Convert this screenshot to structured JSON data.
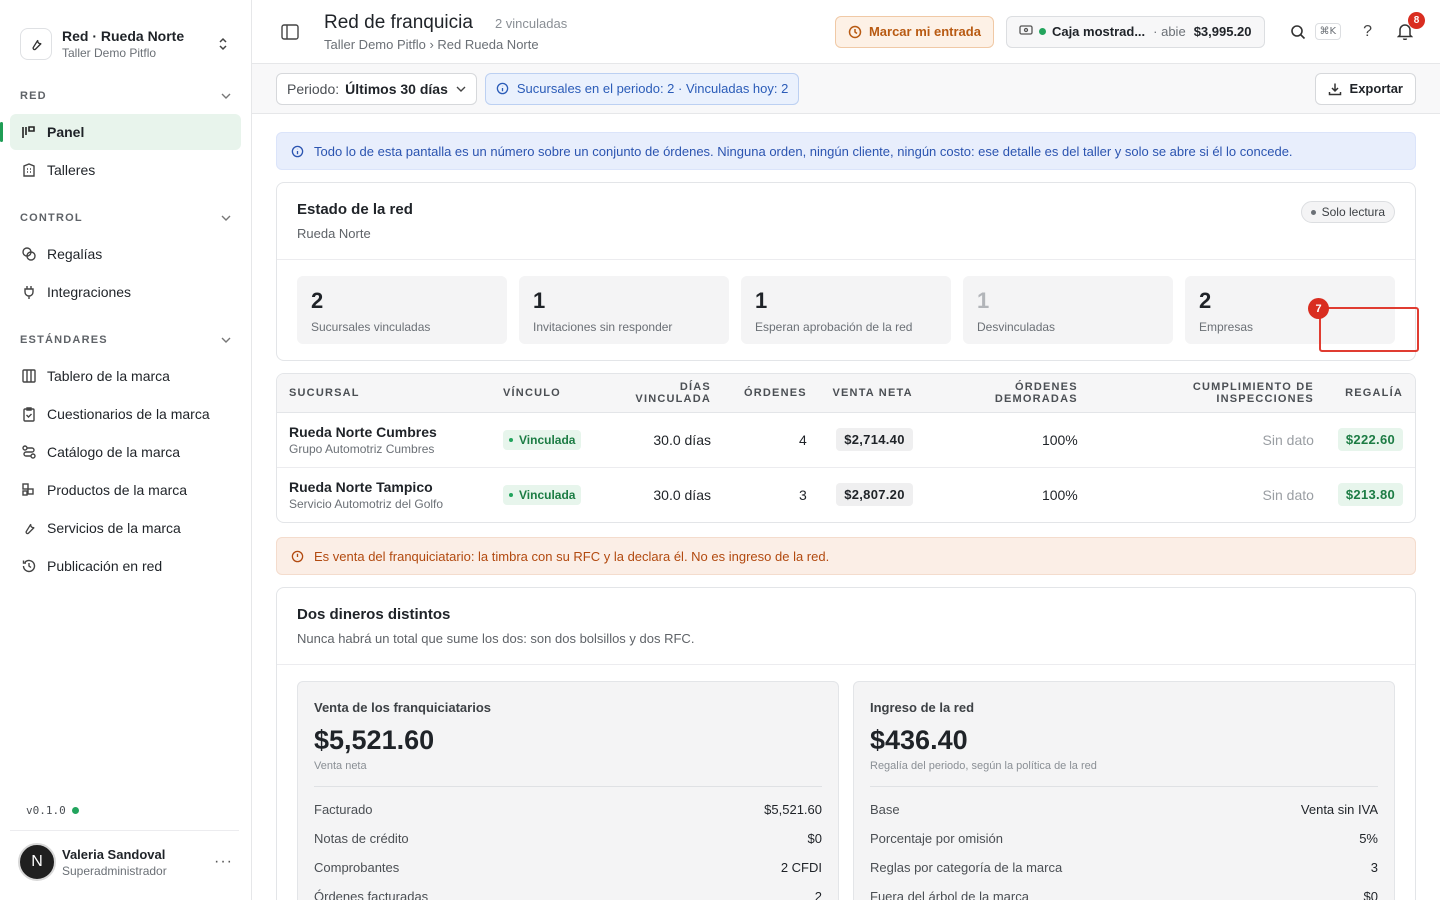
{
  "org": {
    "name": "Red · Rueda Norte",
    "subtitle": "Taller Demo Pitflo"
  },
  "sidebar": {
    "sections": [
      {
        "title": "RED",
        "items": [
          {
            "label": "Panel",
            "icon": "chart-icon",
            "active": true
          },
          {
            "label": "Talleres",
            "icon": "building-icon"
          }
        ]
      },
      {
        "title": "CONTROL",
        "items": [
          {
            "label": "Regalías",
            "icon": "coins-icon"
          },
          {
            "label": "Integraciones",
            "icon": "plug-icon"
          }
        ]
      },
      {
        "title": "ESTÁNDARES",
        "items": [
          {
            "label": "Tablero de la marca",
            "icon": "columns-icon"
          },
          {
            "label": "Cuestionarios de la marca",
            "icon": "clipboard-icon"
          },
          {
            "label": "Catálogo de la marca",
            "icon": "route-icon"
          },
          {
            "label": "Productos de la marca",
            "icon": "boxes-icon"
          },
          {
            "label": "Servicios de la marca",
            "icon": "wrench-icon"
          },
          {
            "label": "Publicación en red",
            "icon": "history-icon"
          }
        ]
      }
    ]
  },
  "version": "v0.1.0",
  "user": {
    "initial": "N",
    "name": "Valeria Sandoval",
    "role": "Superadministrador",
    "more": "···"
  },
  "header": {
    "title": "Red de franquicia",
    "count": "2 vinculadas",
    "breadcrumb": "Taller Demo Pitflo › Red Rueda Norte",
    "checkin_label": "Marcar mi entrada",
    "cashbox": {
      "name": "Caja mostrad...",
      "state": "· abie",
      "amount": "$3,995.20"
    },
    "search_shortcut": "⌘K",
    "notifications": "8"
  },
  "filters": {
    "period_label": "Periodo:",
    "period_value": "Últimos 30 días",
    "info": "Sucursales en el periodo: 2 · Vinculadas hoy: 2",
    "export_label": "Exportar"
  },
  "banner_info": "Todo lo de esta pantalla es un número sobre un conjunto de órdenes. Ninguna orden, ningún cliente, ningún costo: ese detalle es del taller y solo se abre si él lo concede.",
  "status": {
    "title": "Estado de la red",
    "subtitle": "Rueda Norte",
    "badge": "Solo lectura",
    "stats": [
      {
        "value": "2",
        "label": "Sucursales vinculadas"
      },
      {
        "value": "1",
        "label": "Invitaciones sin responder"
      },
      {
        "value": "1",
        "label": "Esperan aprobación de la red"
      },
      {
        "value": "1",
        "label": "Desvinculadas",
        "muted": true
      },
      {
        "value": "2",
        "label": "Empresas"
      }
    ]
  },
  "table": {
    "headers": [
      "SUCURSAL",
      "VÍNCULO",
      "DÍAS VINCULADA",
      "ÓRDENES",
      "VENTA NETA",
      "ÓRDENES DEMORADAS",
      "CUMPLIMIENTO DE INSPECCIONES",
      "REGALÍA"
    ],
    "rows": [
      {
        "name": "Rueda Norte Cumbres",
        "company": "Grupo Automotriz Cumbres",
        "link": "Vinculada",
        "days": "30.0 días",
        "orders": "4",
        "net": "$2,714.40",
        "delayed": "100%",
        "inspections": "Sin dato",
        "royalty": "$222.60"
      },
      {
        "name": "Rueda Norte Tampico",
        "company": "Servicio Automotriz del Golfo",
        "link": "Vinculada",
        "days": "30.0 días",
        "orders": "3",
        "net": "$2,807.20",
        "delayed": "100%",
        "inspections": "Sin dato",
        "royalty": "$213.80"
      }
    ],
    "highlight_marker": "7"
  },
  "banner_warning": "Es venta del franquiciatario: la timbra con su RFC y la declara él. No es ingreso de la red.",
  "money": {
    "title": "Dos dineros distintos",
    "subtitle": "Nunca habrá un total que sume los dos: son dos bolsillos y dos RFC.",
    "cards": [
      {
        "title": "Venta de los franquiciatarios",
        "amount": "$5,521.60",
        "caption": "Venta neta",
        "rows": [
          {
            "k": "Facturado",
            "v": "$5,521.60"
          },
          {
            "k": "Notas de crédito",
            "v": "$0"
          },
          {
            "k": "Comprobantes",
            "v": "2 CFDI"
          },
          {
            "k": "Órdenes facturadas",
            "v": "2"
          }
        ]
      },
      {
        "title": "Ingreso de la red",
        "amount": "$436.40",
        "caption": "Regalía del periodo, según la política de la red",
        "rows": [
          {
            "k": "Base",
            "v": "Venta sin IVA"
          },
          {
            "k": "Porcentaje por omisión",
            "v": "5%"
          },
          {
            "k": "Reglas por categoría de la marca",
            "v": "3"
          },
          {
            "k": "Fuera del árbol de la marca",
            "v": "$0"
          }
        ]
      }
    ]
  },
  "colors": {
    "accent": "#1f9d55",
    "warning": "#b85a12",
    "info": "#2b5cb8",
    "highlight": "#e03c31"
  }
}
